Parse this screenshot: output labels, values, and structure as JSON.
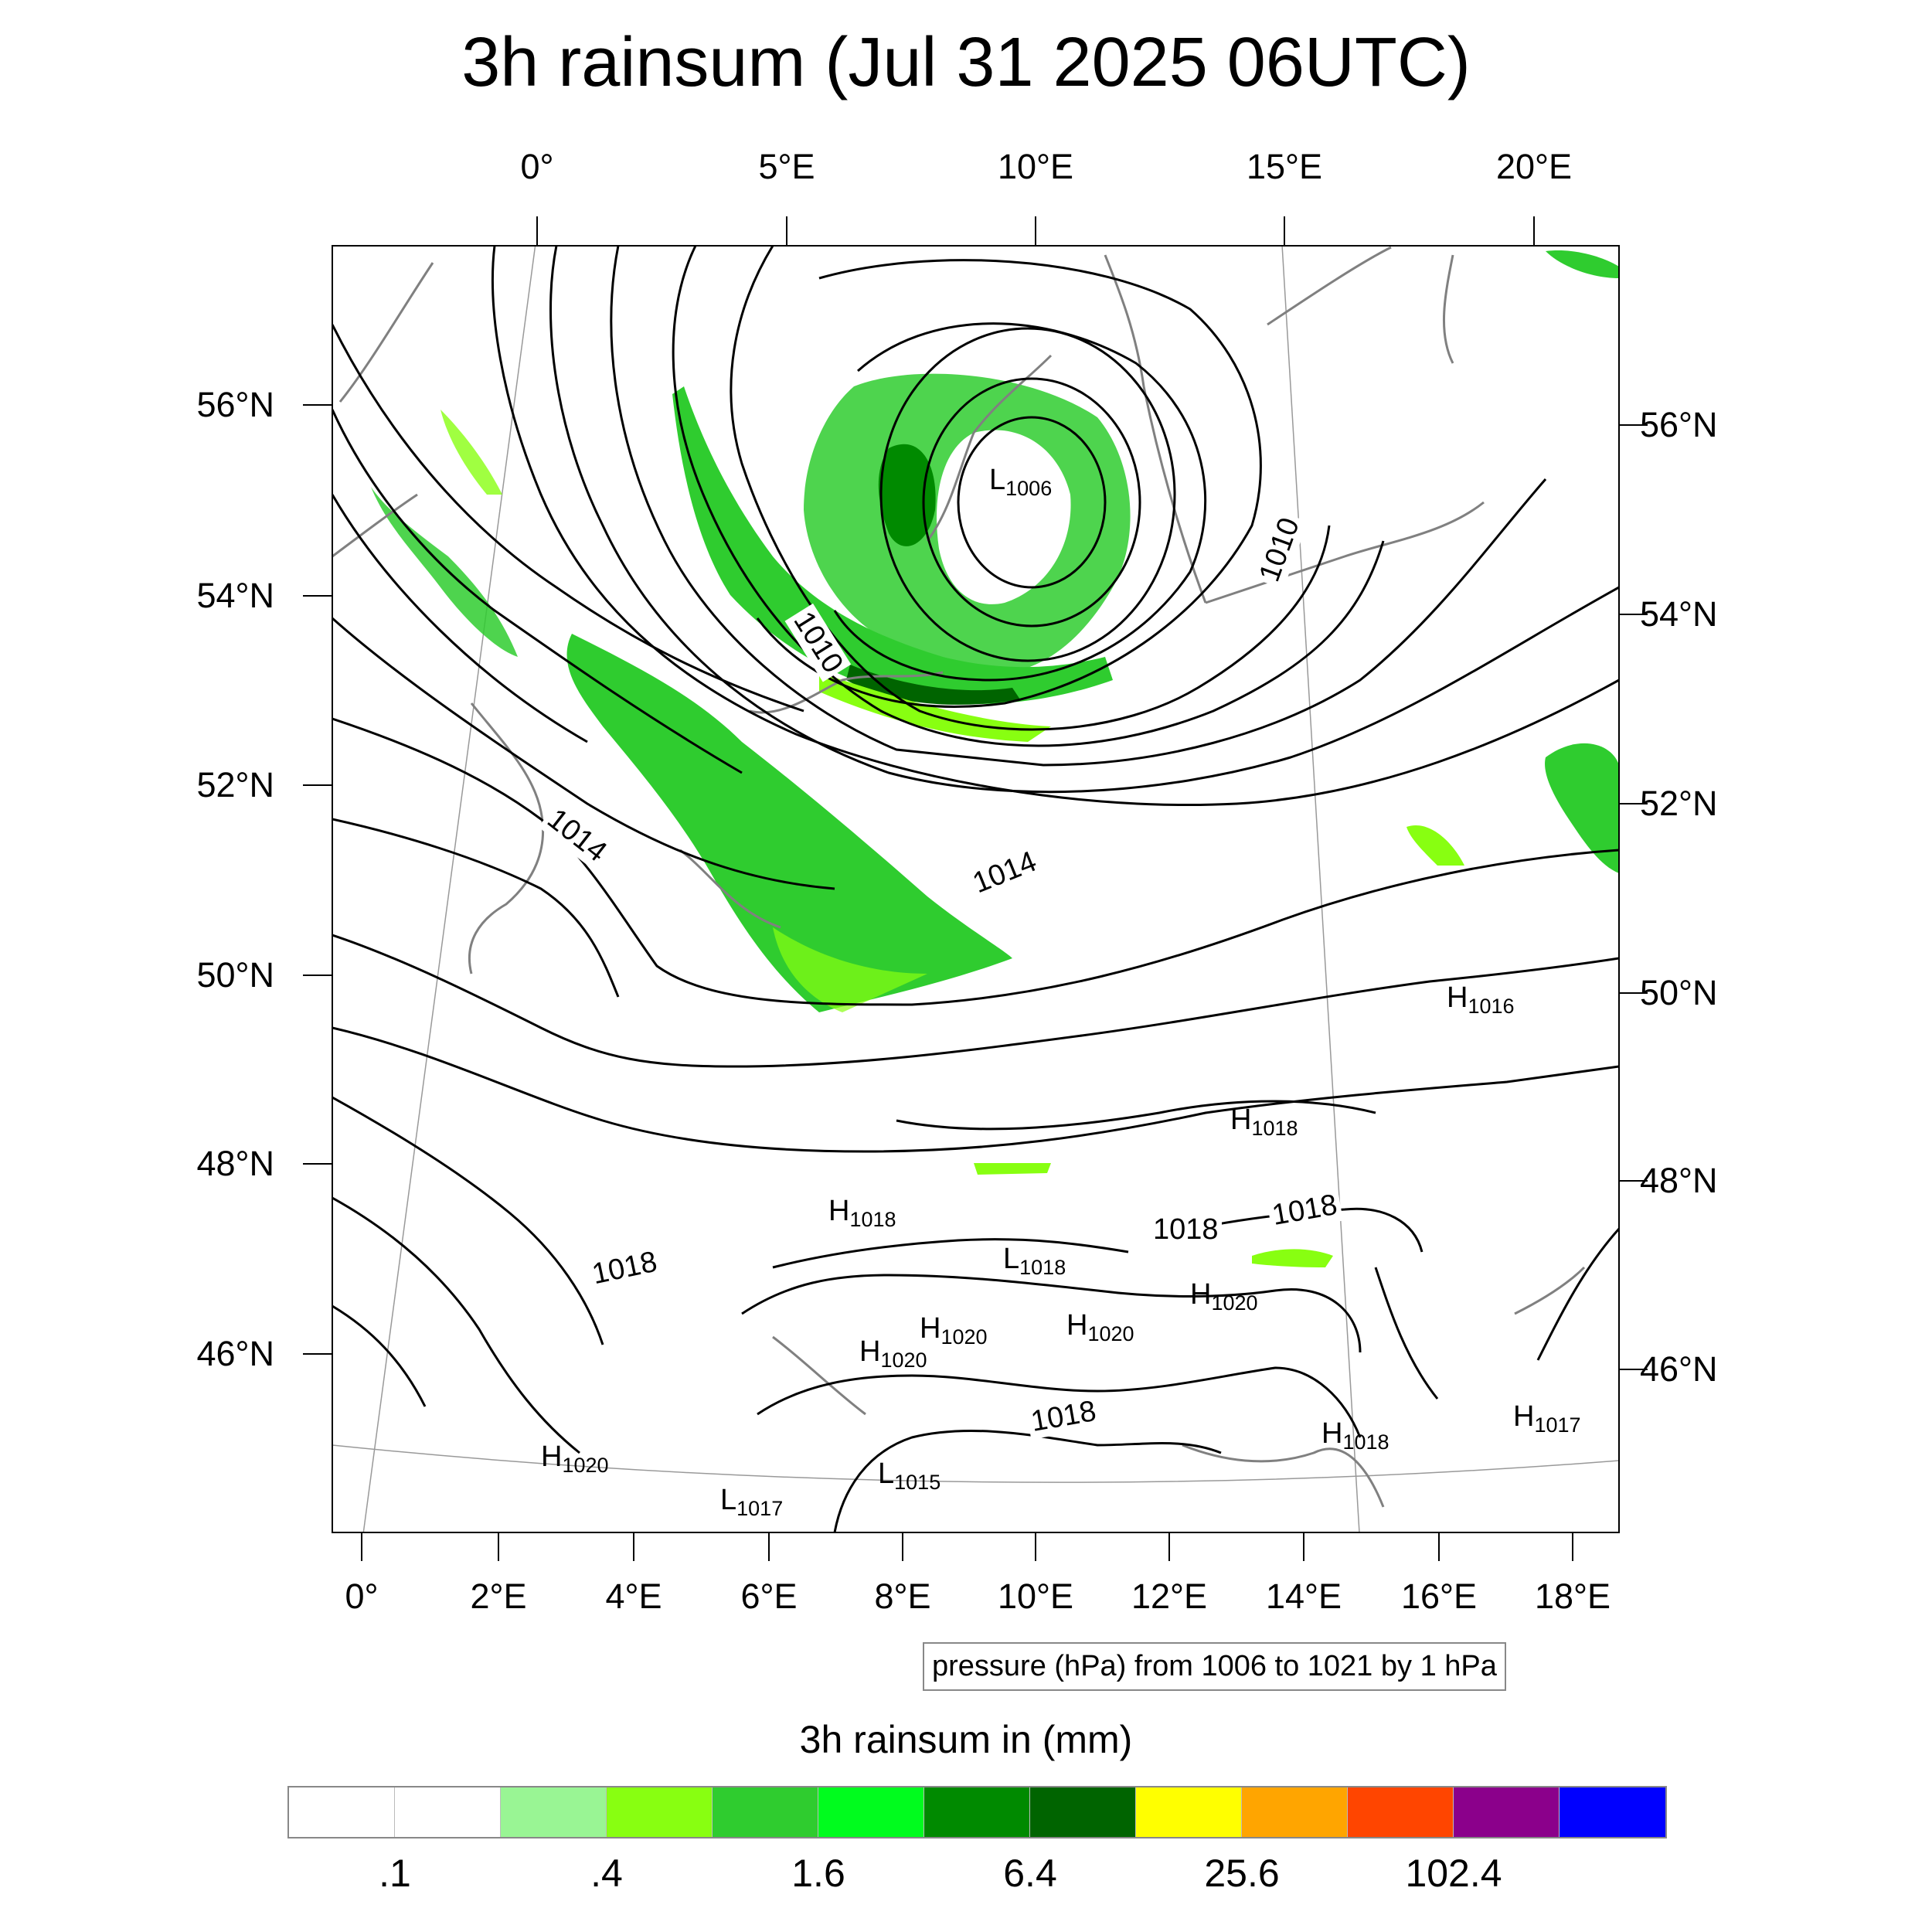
{
  "title": "3h rainsum (Jul 31 2025 06UTC)",
  "axes": {
    "top_lon_labels": [
      "0°",
      "5°E",
      "10°E",
      "15°E",
      "20°E"
    ],
    "bottom_lon_labels": [
      "0°",
      "2°E",
      "4°E",
      "6°E",
      "8°E",
      "10°E",
      "12°E",
      "14°E",
      "16°E",
      "18°E"
    ],
    "left_lat_labels": [
      "56°N",
      "54°N",
      "52°N",
      "50°N",
      "48°N",
      "46°N"
    ],
    "right_lat_labels": [
      "56°N",
      "54°N",
      "52°N",
      "50°N",
      "48°N",
      "46°N"
    ]
  },
  "pressure_labels": {
    "l1006": {
      "letter": "L",
      "value": "1006"
    },
    "h1016": {
      "letter": "H",
      "value": "1016"
    },
    "h1018a": {
      "letter": "H",
      "value": "1018"
    },
    "h1018b": {
      "letter": "H",
      "value": "1018"
    },
    "l1018": {
      "letter": "L",
      "value": "1018"
    },
    "h1020a": {
      "letter": "H",
      "value": "1020"
    },
    "h1020b": {
      "letter": "H",
      "value": "1020"
    },
    "h1020c": {
      "letter": "H",
      "value": "1020"
    },
    "h1020d": {
      "letter": "H",
      "value": "1020"
    },
    "h1018c": {
      "letter": "H",
      "value": "1018"
    },
    "h1017": {
      "letter": "H",
      "value": "1017"
    },
    "l1015": {
      "letter": "L",
      "value": "1015"
    },
    "l1017": {
      "letter": "L",
      "value": "1017"
    },
    "h1020e": {
      "letter": "H",
      "value": "1020"
    }
  },
  "contour_labels": {
    "c1010a": "1010",
    "c1010b": "1010",
    "c1014a": "1014",
    "c1014b": "1014",
    "c1018a": "1018",
    "c1018b": "1018",
    "c1018c": "1018",
    "c1018d": "1018"
  },
  "info_box": "pressure (hPa) from 1006 to 1021 by 1 hPa",
  "colorbar": {
    "title": "3h rainsum in (mm)",
    "colors": [
      "#ffffff",
      "#ffffff",
      "#99f594",
      "#88ff11",
      "#2fcc2f",
      "#00fc1e",
      "#008a00",
      "#006400",
      "#ffff00",
      "#ffa500",
      "#ff4500",
      "#8b008b",
      "#0000ff"
    ],
    "labels": [
      ".1",
      ".4",
      "1.6",
      "6.4",
      "25.6",
      "102.4"
    ]
  }
}
